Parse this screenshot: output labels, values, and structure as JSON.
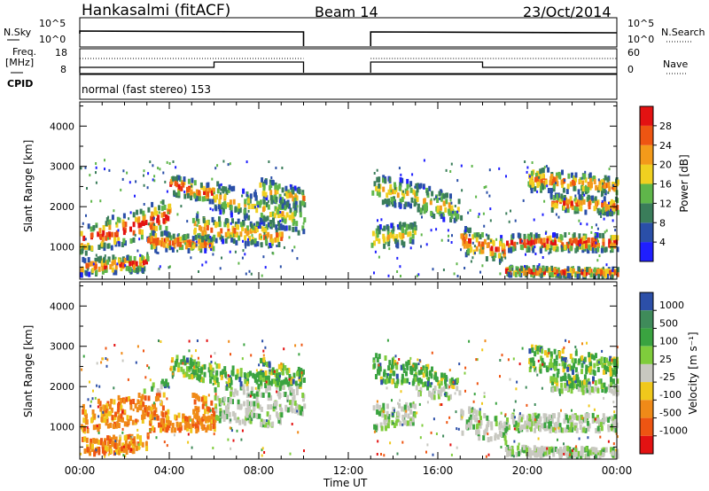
{
  "header": {
    "station": "Hankasalmi (fitACF)",
    "beam": "Beam 14",
    "date": "23/Oct/2014"
  },
  "panels": {
    "nsky_label": "N.Sky",
    "nsky_ticks": [
      "10^5",
      "10^0"
    ],
    "nsearch_label": "N.Search",
    "nsearch_ticks": [
      "10^5",
      "10^0"
    ],
    "freq_label_1": "Freq.",
    "freq_label_2": "[MHz]",
    "freq_ticks": [
      "18",
      "8"
    ],
    "nave_label": "Nave",
    "nave_ticks": [
      "60",
      "0"
    ],
    "cpid_label": "CPID",
    "cpid_value": "normal (fast stereo) 153"
  },
  "chart_data": [
    {
      "type": "heatmap",
      "title": "",
      "xlabel": "Time UT",
      "ylabel": "Slant Range [km]",
      "ylim": [
        200,
        4600
      ],
      "yticks": [
        "1000",
        "2000",
        "3000",
        "4000"
      ],
      "colorbar_label": "Power [dB]",
      "colorbar_ticks": [
        "4",
        "8",
        "12",
        "16",
        "20",
        "24",
        "28"
      ],
      "colorbar_colors": [
        "#1f1fff",
        "#2a4fa8",
        "#3a7d5a",
        "#5fb64a",
        "#f0d020",
        "#f39a1a",
        "#ee5512",
        "#e31212"
      ],
      "data_gap_ut": [
        "10:00",
        "13:00"
      ]
    },
    {
      "type": "heatmap",
      "title": "",
      "xlabel": "Time UT",
      "ylabel": "Slant Range [km]",
      "ylim": [
        200,
        4600
      ],
      "yticks": [
        "1000",
        "2000",
        "3000",
        "4000"
      ],
      "colorbar_label": "Velocity [m s⁻¹]",
      "colorbar_ticks": [
        "1000",
        "500",
        "100",
        "25",
        "-25",
        "-100",
        "-500",
        "-1000"
      ],
      "colorbar_colors": [
        "#2c4fa8",
        "#3f8b5a",
        "#3aa340",
        "#7fcc3c",
        "#c8c8c0",
        "#f0c81c",
        "#f08a18",
        "#ee5512",
        "#e31212"
      ],
      "data_gap_ut": [
        "10:00",
        "13:00"
      ]
    }
  ],
  "x_axis": {
    "ticks": [
      "00:00",
      "04:00",
      "08:00",
      "12:00",
      "16:00",
      "20:00",
      "00:00"
    ],
    "label": "Time UT"
  }
}
